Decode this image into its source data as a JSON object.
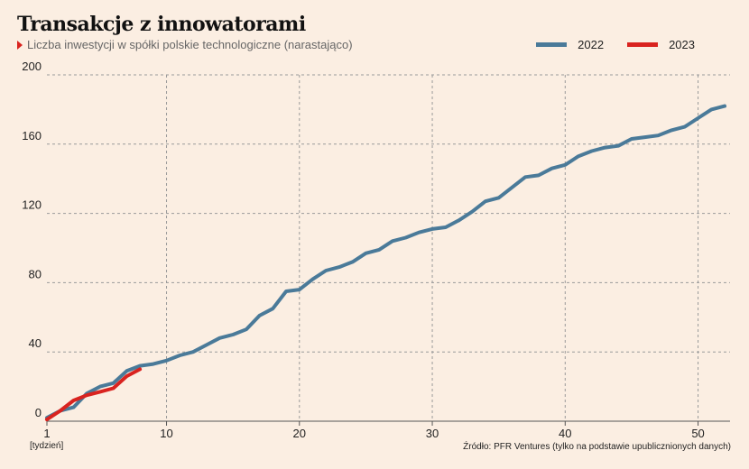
{
  "header": {
    "title": "Transakcje z innowatorami",
    "subtitle": "Liczba inwestycji w spółki polskie technologiczne (narastająco)"
  },
  "footer": {
    "source": "Źródło: PFR Ventures (tylko na podstawie upublicznionych danych)",
    "x_unit": "[tydzień]"
  },
  "chart_data": {
    "type": "line",
    "title": "Transakcje z innowatorami",
    "subtitle": "Liczba inwestycji w spółki polskie technologiczne (narastająco)",
    "xlabel": "[tydzień]",
    "ylabel": "",
    "xlim": [
      1,
      52
    ],
    "ylim": [
      0,
      200
    ],
    "x_ticks": [
      1,
      10,
      20,
      30,
      40,
      50
    ],
    "y_ticks": [
      0,
      40,
      80,
      120,
      160,
      200
    ],
    "grid": true,
    "legend_position": "top-right",
    "series": [
      {
        "name": "2022",
        "color": "#4a7a99",
        "x": [
          1,
          2,
          3,
          4,
          5,
          6,
          7,
          8,
          9,
          10,
          11,
          12,
          13,
          14,
          15,
          16,
          17,
          18,
          19,
          20,
          21,
          22,
          23,
          24,
          25,
          26,
          27,
          28,
          29,
          30,
          31,
          32,
          33,
          34,
          35,
          36,
          37,
          38,
          39,
          40,
          41,
          42,
          43,
          44,
          45,
          46,
          47,
          48,
          49,
          50,
          51,
          52
        ],
        "values": [
          2,
          6,
          8,
          16,
          20,
          22,
          29,
          32,
          33,
          35,
          38,
          40,
          44,
          48,
          50,
          53,
          61,
          65,
          75,
          76,
          82,
          87,
          89,
          92,
          97,
          99,
          104,
          106,
          109,
          111,
          112,
          116,
          121,
          127,
          129,
          135,
          141,
          142,
          146,
          148,
          153,
          156,
          158,
          159,
          163,
          164,
          165,
          168,
          170,
          175,
          180,
          182
        ]
      },
      {
        "name": "2023",
        "color": "#d9231f",
        "x": [
          1,
          2,
          3,
          4,
          5,
          6,
          7,
          8
        ],
        "values": [
          1,
          6,
          12,
          15,
          17,
          19,
          26,
          30
        ]
      }
    ]
  }
}
